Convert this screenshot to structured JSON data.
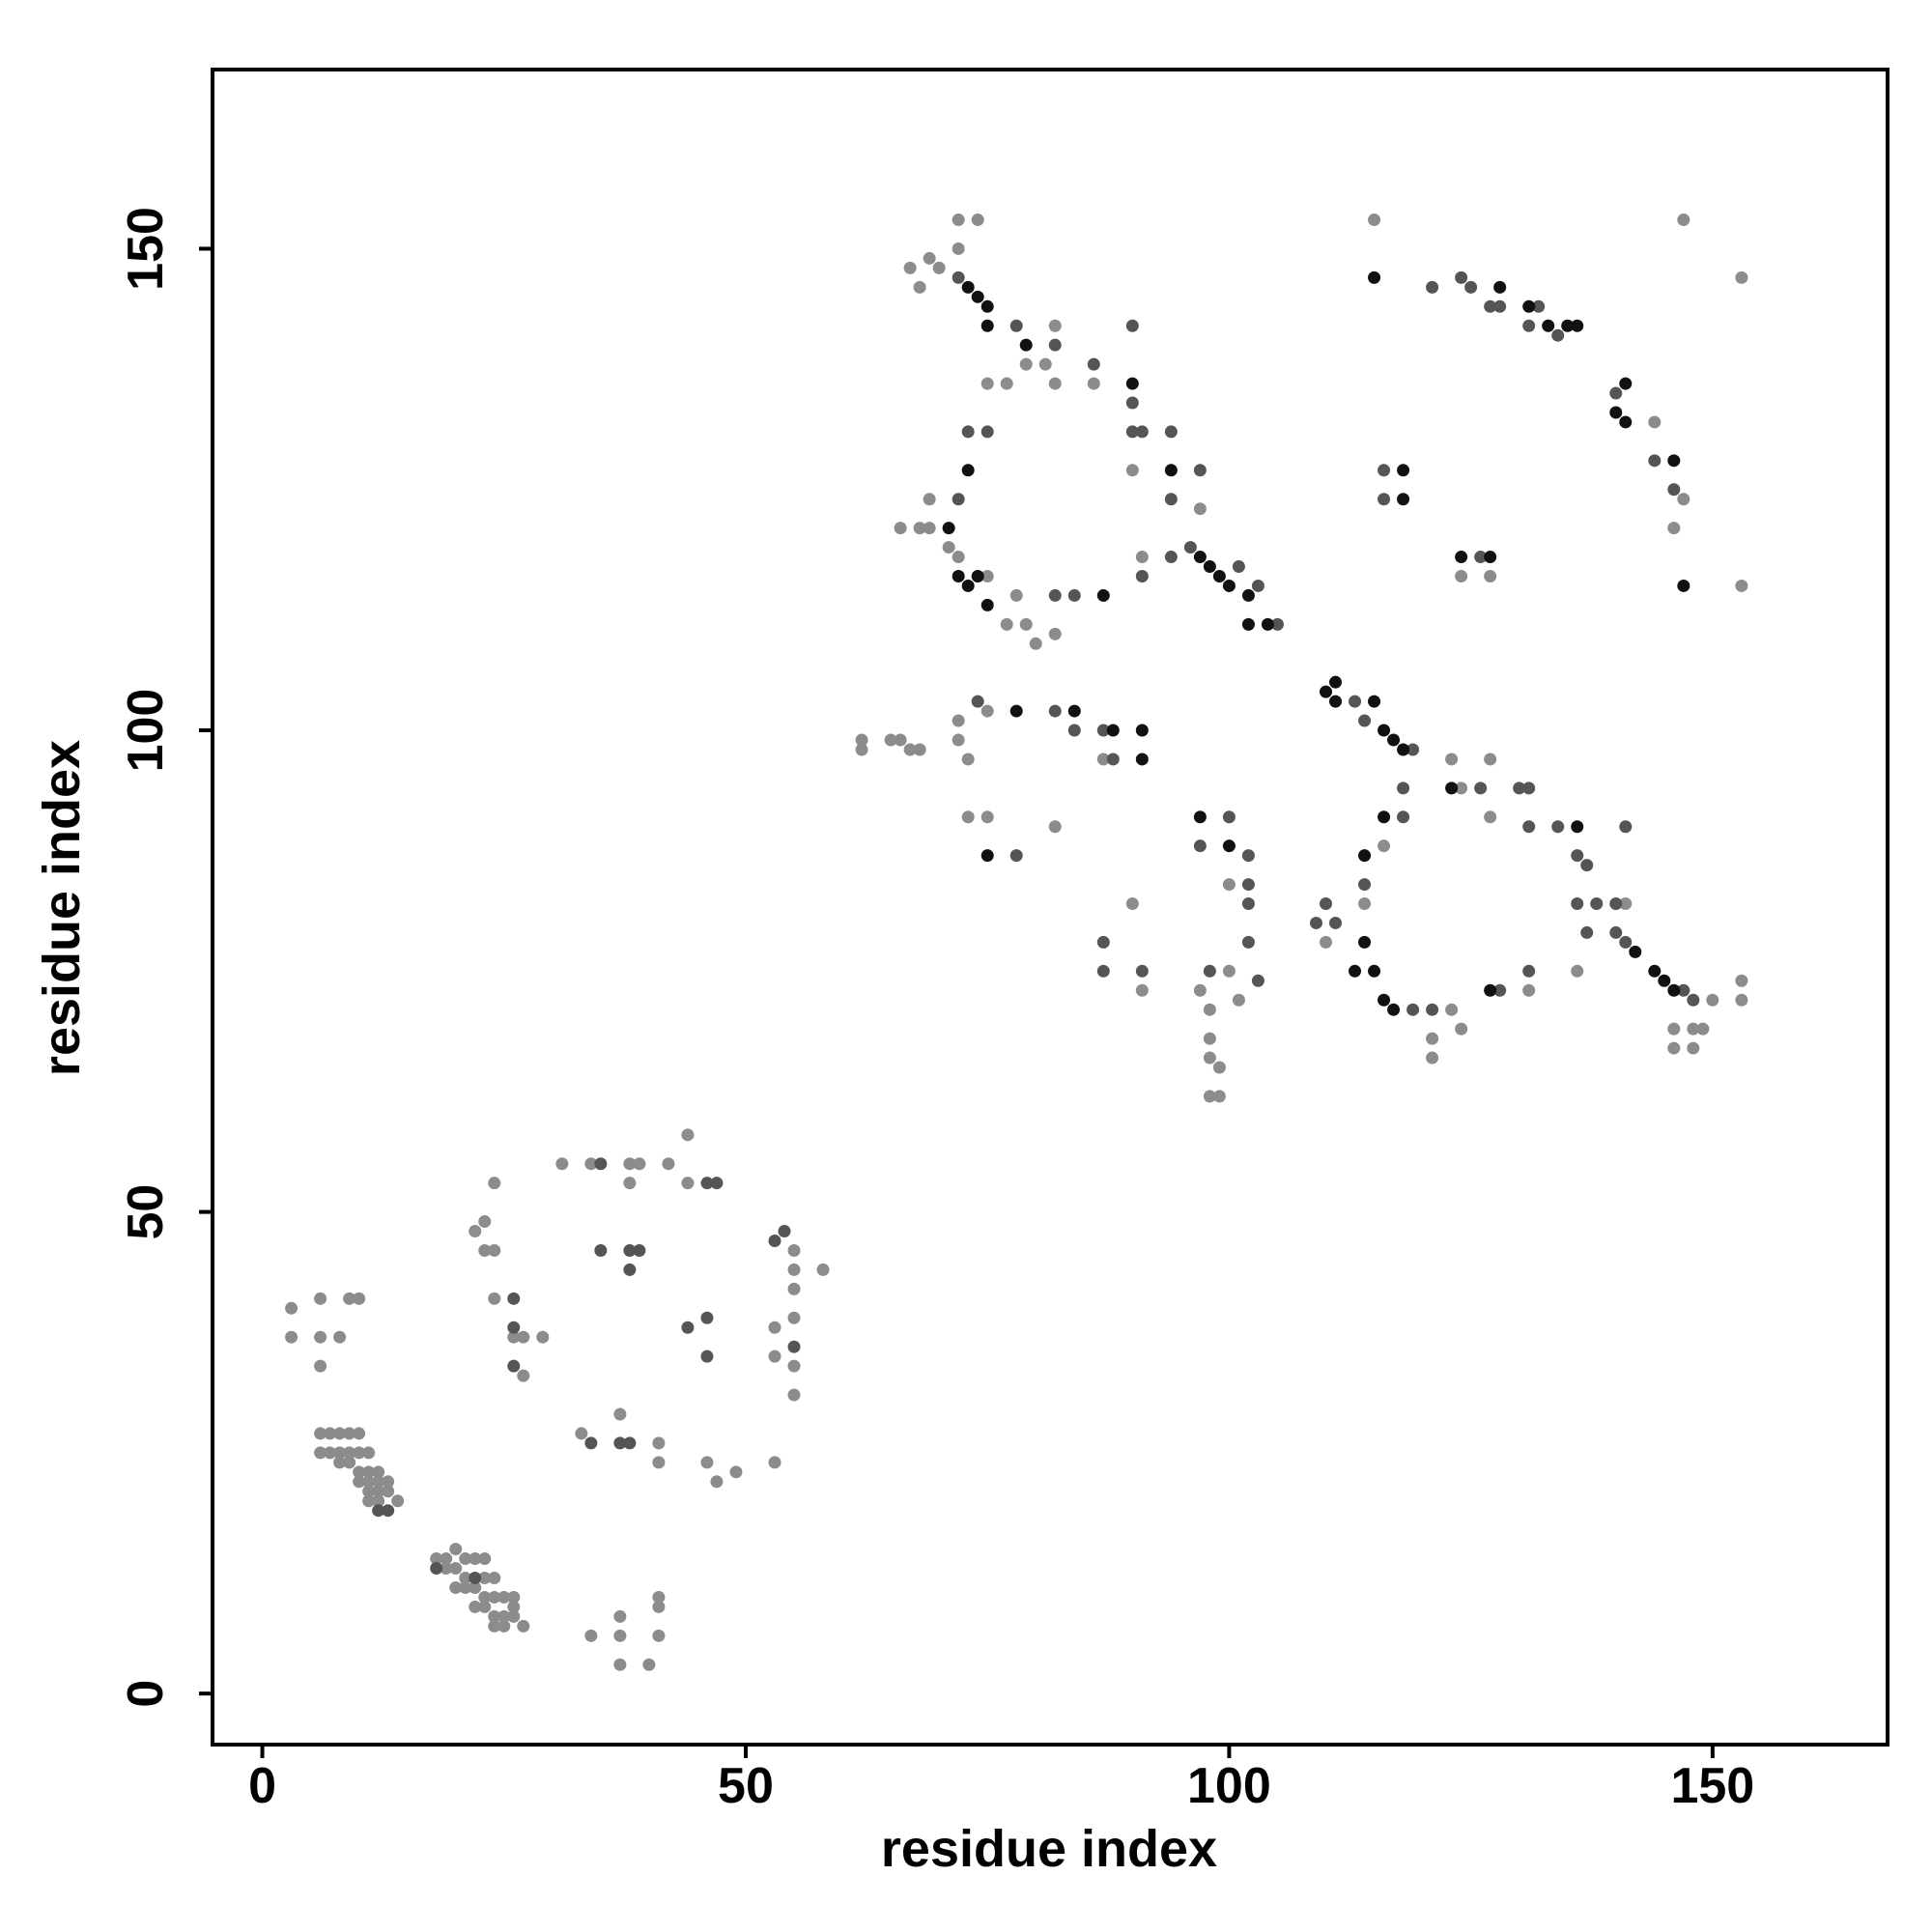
{
  "chart_data": {
    "type": "scatter",
    "x_label": "residue index",
    "y_label": "residue index",
    "xlim": [
      -5.15,
      168.1
    ],
    "ylim": [
      -5.3,
      168.6
    ],
    "xticks": [
      0,
      50,
      100,
      150
    ],
    "yticks": [
      0,
      50,
      100,
      150
    ],
    "series": [
      {
        "color": "#8c8c8c",
        "x": [
          3,
          3,
          6,
          6,
          8,
          6,
          9,
          10,
          6,
          7,
          8,
          9,
          10,
          6,
          7,
          8,
          9,
          10,
          11,
          8,
          9,
          10,
          11,
          12,
          10,
          11,
          12,
          13,
          11,
          12,
          13,
          14,
          11,
          12,
          18,
          19,
          20,
          21,
          22,
          23,
          19,
          20,
          21,
          23,
          24,
          20,
          21,
          22,
          23,
          24,
          25,
          22,
          23,
          24,
          25,
          26,
          24,
          25,
          27,
          26,
          26,
          34,
          37,
          37,
          37,
          40,
          41,
          41,
          41,
          24,
          22,
          23,
          23,
          24,
          24,
          26,
          27,
          29,
          27,
          31,
          34,
          38,
          39,
          38,
          42,
          44,
          44,
          33,
          37,
          41,
          41,
          46,
          47,
          49,
          53,
          55,
          55,
          55,
          58,
          53,
          55,
          53,
          55,
          55,
          67,
          68,
          69,
          70,
          72,
          74,
          72,
          82,
          79,
          81,
          75,
          77,
          82,
          86,
          90,
          97,
          91,
          69,
          66,
          68,
          69,
          71,
          72,
          75,
          78,
          77,
          79,
          80,
          82,
          62,
          62,
          65,
          66,
          67,
          68,
          72,
          72,
          75,
          73,
          87,
          73,
          75,
          82,
          97,
          98,
          101,
          100,
          98,
          98,
          99,
          98,
          99,
          90,
          91,
          100,
          123,
          124,
          127,
          127,
          110,
          114,
          116,
          123,
          124,
          121,
          121,
          131,
          136,
          141,
          150,
          153,
          153,
          146,
          148,
          149,
          146,
          148,
          115,
          147,
          153,
          146,
          147,
          153,
          124,
          127,
          144
        ],
        "values": [
          40,
          37,
          41,
          37,
          37,
          34,
          41,
          41,
          27,
          27,
          27,
          27,
          27,
          25,
          25,
          25,
          25,
          25,
          25,
          24,
          24,
          23,
          23,
          23,
          22,
          22,
          22,
          22,
          21,
          21,
          21,
          20,
          20,
          20,
          14,
          14,
          15,
          14,
          14,
          14,
          13,
          13,
          12,
          12,
          12,
          11,
          11,
          11,
          10,
          10,
          10,
          9,
          9,
          8,
          8,
          8,
          7,
          7,
          7,
          10,
          9,
          6,
          8,
          6,
          3,
          3,
          10,
          6,
          9,
          53,
          48,
          49,
          46,
          46,
          41,
          37,
          37,
          37,
          33,
          55,
          55,
          55,
          55,
          53,
          55,
          58,
          53,
          27,
          29,
          26,
          24,
          24,
          22,
          23,
          24,
          46,
          44,
          42,
          44,
          38,
          39,
          35,
          34,
          31,
          148,
          146,
          149,
          148,
          153,
          153,
          150,
          142,
          138,
          138,
          136,
          136,
          136,
          136,
          127,
          123,
          118,
          124,
          121,
          121,
          121,
          119,
          118,
          116,
          114,
          111,
          111,
          109,
          110,
          99,
          98,
          99,
          99,
          98,
          98,
          101,
          99,
          102,
          97,
          97,
          91,
          91,
          90,
          73,
          71,
          72,
          75,
          68,
          66,
          65,
          62,
          62,
          82,
          73,
          84,
          97,
          94,
          97,
          91,
          78,
          82,
          88,
          71,
          69,
          68,
          66,
          73,
          75,
          82,
          72,
          74,
          72,
          69,
          69,
          69,
          67,
          67,
          153,
          153,
          147,
          121,
          124,
          115,
          116,
          116,
          132
        ]
      },
      {
        "color": "#555555",
        "x": [
          26,
          26,
          35,
          38,
          39,
          38,
          44,
          46,
          46,
          34,
          37,
          38,
          35,
          46,
          47,
          53,
          54,
          12,
          13,
          18,
          22,
          55,
          26,
          72,
          78,
          82,
          86,
          90,
          90,
          94,
          94,
          91,
          94,
          72,
          82,
          84,
          96,
          101,
          103,
          105,
          84,
          87,
          88,
          78,
          82,
          100,
          102,
          102,
          102,
          102,
          87,
          87,
          91,
          103,
          113,
          114,
          119,
          118,
          126,
          130,
          131,
          131,
          134,
          141,
          118,
          114,
          109,
          110,
          119,
          121,
          128,
          131,
          136,
          138,
          140,
          137,
          140,
          141,
          147,
          148,
          121,
          124,
          125,
          127,
          128,
          132,
          131,
          134,
          140,
          144,
          146,
          116,
          116,
          126,
          73,
          75,
          74,
          91,
          90,
          97,
          97,
          98,
          137,
          136,
          111
        ],
        "values": [
          38,
          34,
          46,
          46,
          46,
          44,
          38,
          39,
          35,
          26,
          26,
          26,
          55,
          53,
          53,
          47,
          48,
          19,
          19,
          13,
          12,
          36,
          41,
          147,
          142,
          140,
          138,
          142,
          131,
          131,
          124,
          116,
          118,
          124,
          114,
          114,
          119,
          117,
          115,
          111,
          100,
          100,
          97,
          87,
          102,
          91,
          87,
          84,
          82,
          78,
          78,
          75,
          75,
          74,
          103,
          101,
          98,
          94,
          94,
          94,
          94,
          90,
          90,
          90,
          91,
          84,
          80,
          82,
          71,
          71,
          73,
          75,
          82,
          82,
          82,
          79,
          79,
          78,
          73,
          72,
          146,
          147,
          146,
          144,
          144,
          144,
          142,
          141,
          135,
          128,
          125,
          124,
          127,
          118,
          131,
          131,
          103,
          131,
          134,
          127,
          88,
          75,
          86,
          87,
          80
        ]
      },
      {
        "color": "#111111",
        "x": [
          73,
          74,
          75,
          75,
          79,
          90,
          73,
          71,
          72,
          73,
          74,
          75,
          97,
          98,
          99,
          100,
          102,
          104,
          84,
          88,
          91,
          91,
          75,
          97,
          100,
          110,
          111,
          111,
          115,
          116,
          117,
          118,
          123,
          136,
          116,
          114,
          114,
          113,
          115,
          116,
          117,
          127,
          142,
          144,
          145,
          146,
          115,
          128,
          131,
          133,
          135,
          136,
          141,
          140,
          141,
          146,
          147,
          118,
          118,
          124,
          127,
          87,
          94,
          78,
          102
        ],
        "values": [
          146,
          145,
          144,
          142,
          140,
          136,
          127,
          121,
          116,
          115,
          116,
          113,
          118,
          117,
          116,
          115,
          114,
          111,
          102,
          100,
          100,
          97,
          87,
          91,
          88,
          104,
          105,
          103,
          103,
          100,
          99,
          98,
          94,
          90,
          91,
          87,
          78,
          75,
          75,
          72,
          71,
          73,
          77,
          75,
          74,
          73,
          147,
          146,
          144,
          142,
          142,
          142,
          136,
          133,
          132,
          128,
          115,
          127,
          124,
          118,
          118,
          114,
          127,
          102,
          111
        ]
      }
    ]
  }
}
